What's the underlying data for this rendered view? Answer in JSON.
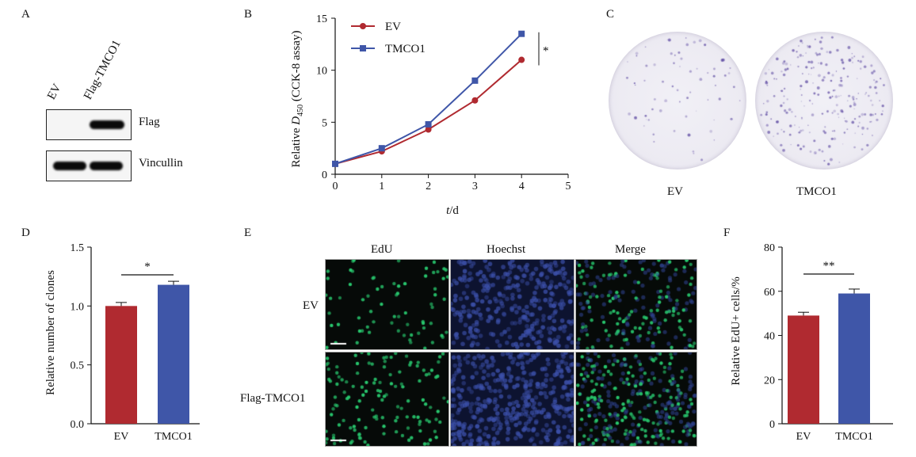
{
  "panels": {
    "A": {
      "label": "A",
      "lanes": [
        "EV",
        "Flag-TMCO1"
      ],
      "blots": [
        "Flag",
        "Vincullin"
      ]
    },
    "B": {
      "label": "B",
      "ylabel": "Relative D450 (CCK-8 assay)",
      "xlabel": "t/d",
      "significance": "*"
    },
    "C": {
      "label": "C",
      "dishes": [
        "EV",
        "TMCO1"
      ]
    },
    "D": {
      "label": "D",
      "ylabel": "Relative number of clones",
      "significance": "*"
    },
    "E": {
      "label": "E",
      "columns": [
        "EdU",
        "Hoechst",
        "Merge"
      ],
      "rows": [
        "EV",
        "Flag-TMCO1"
      ]
    },
    "F": {
      "label": "F",
      "ylabel": "Relative EdU+ cells/%",
      "significance": "**"
    }
  },
  "colors": {
    "ev": "#b02a30",
    "tmco1": "#3f56a8",
    "edu_green": "#27c46a",
    "hoechst_blue": "#2c3f8a"
  },
  "chart_data": [
    {
      "panel": "B",
      "type": "line",
      "x": [
        0,
        1,
        2,
        3,
        4
      ],
      "series": [
        {
          "name": "EV",
          "values": [
            1.0,
            2.2,
            4.3,
            7.1,
            11.0
          ]
        },
        {
          "name": "TMCO1",
          "values": [
            1.0,
            2.5,
            4.8,
            9.0,
            13.5
          ]
        }
      ],
      "xticks": [
        "0",
        "1",
        "2",
        "3",
        "4",
        "5"
      ],
      "yticks": [
        "0",
        "5",
        "10",
        "15"
      ],
      "xlim": [
        0,
        5
      ],
      "ylim": [
        0,
        15
      ],
      "legend": "top-left"
    },
    {
      "panel": "D",
      "type": "bar",
      "categories": [
        "EV",
        "TMCO1"
      ],
      "values": [
        1.0,
        1.18
      ],
      "errors": [
        0.03,
        0.03
      ],
      "yticks": [
        "0.0",
        "0.5",
        "1.0",
        "1.5"
      ],
      "ylim": [
        0,
        1.5
      ]
    },
    {
      "panel": "F",
      "type": "bar",
      "categories": [
        "EV",
        "TMCO1"
      ],
      "values": [
        49,
        59
      ],
      "errors": [
        1.5,
        2
      ],
      "yticks": [
        "0",
        "20",
        "40",
        "60",
        "80"
      ],
      "ylim": [
        0,
        80
      ]
    }
  ]
}
